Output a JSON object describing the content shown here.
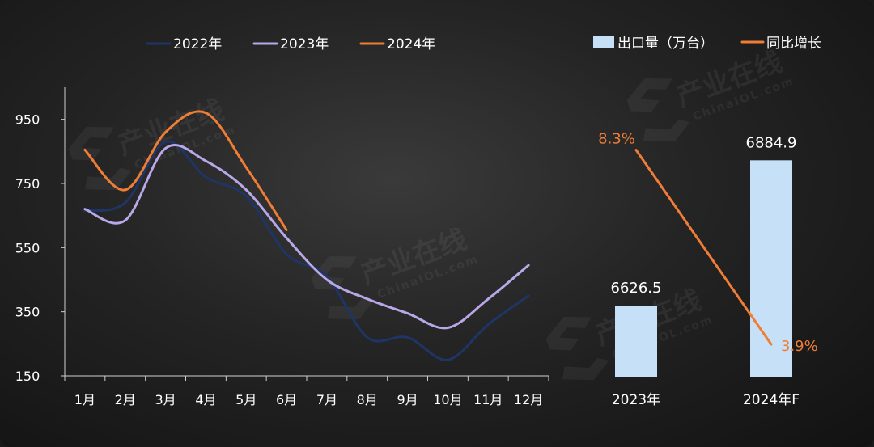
{
  "left_chart_data": {
    "type": "line",
    "categories": [
      "1月",
      "2月",
      "3月",
      "4月",
      "5月",
      "6月",
      "7月",
      "8月",
      "9月",
      "10月",
      "11月",
      "12月"
    ],
    "ylim": [
      150,
      1050
    ],
    "yticks": [
      150,
      350,
      550,
      750,
      950
    ],
    "series": [
      {
        "name": "2022年",
        "color": "#1e3566",
        "values": [
          665,
          690,
          880,
          770,
          710,
          530,
          460,
          270,
          270,
          200,
          310,
          400
        ]
      },
      {
        "name": "2023年",
        "color": "#b8a8e8",
        "values": [
          670,
          635,
          860,
          820,
          730,
          580,
          450,
          390,
          345,
          300,
          390,
          495
        ]
      },
      {
        "name": "2024年",
        "color": "#ef7d36",
        "values": [
          855,
          730,
          910,
          970,
          800,
          605
        ]
      }
    ]
  },
  "right_chart_data": {
    "type": "bar",
    "categories": [
      "2023年",
      "2024年F"
    ],
    "bar_color": "#c6e0f7",
    "line_color": "#ef7d36",
    "series": [
      {
        "name": "出口量（万台）",
        "values": [
          6626.5,
          6884.9
        ],
        "labels": [
          "6626.5",
          "6884.9"
        ]
      },
      {
        "name": "同比增长",
        "values": [
          8.3,
          3.9
        ],
        "labels": [
          "8.3%",
          "3.9%"
        ]
      }
    ]
  },
  "watermark": {
    "cn": "产业在线",
    "en": "ChinaIOL.com"
  }
}
